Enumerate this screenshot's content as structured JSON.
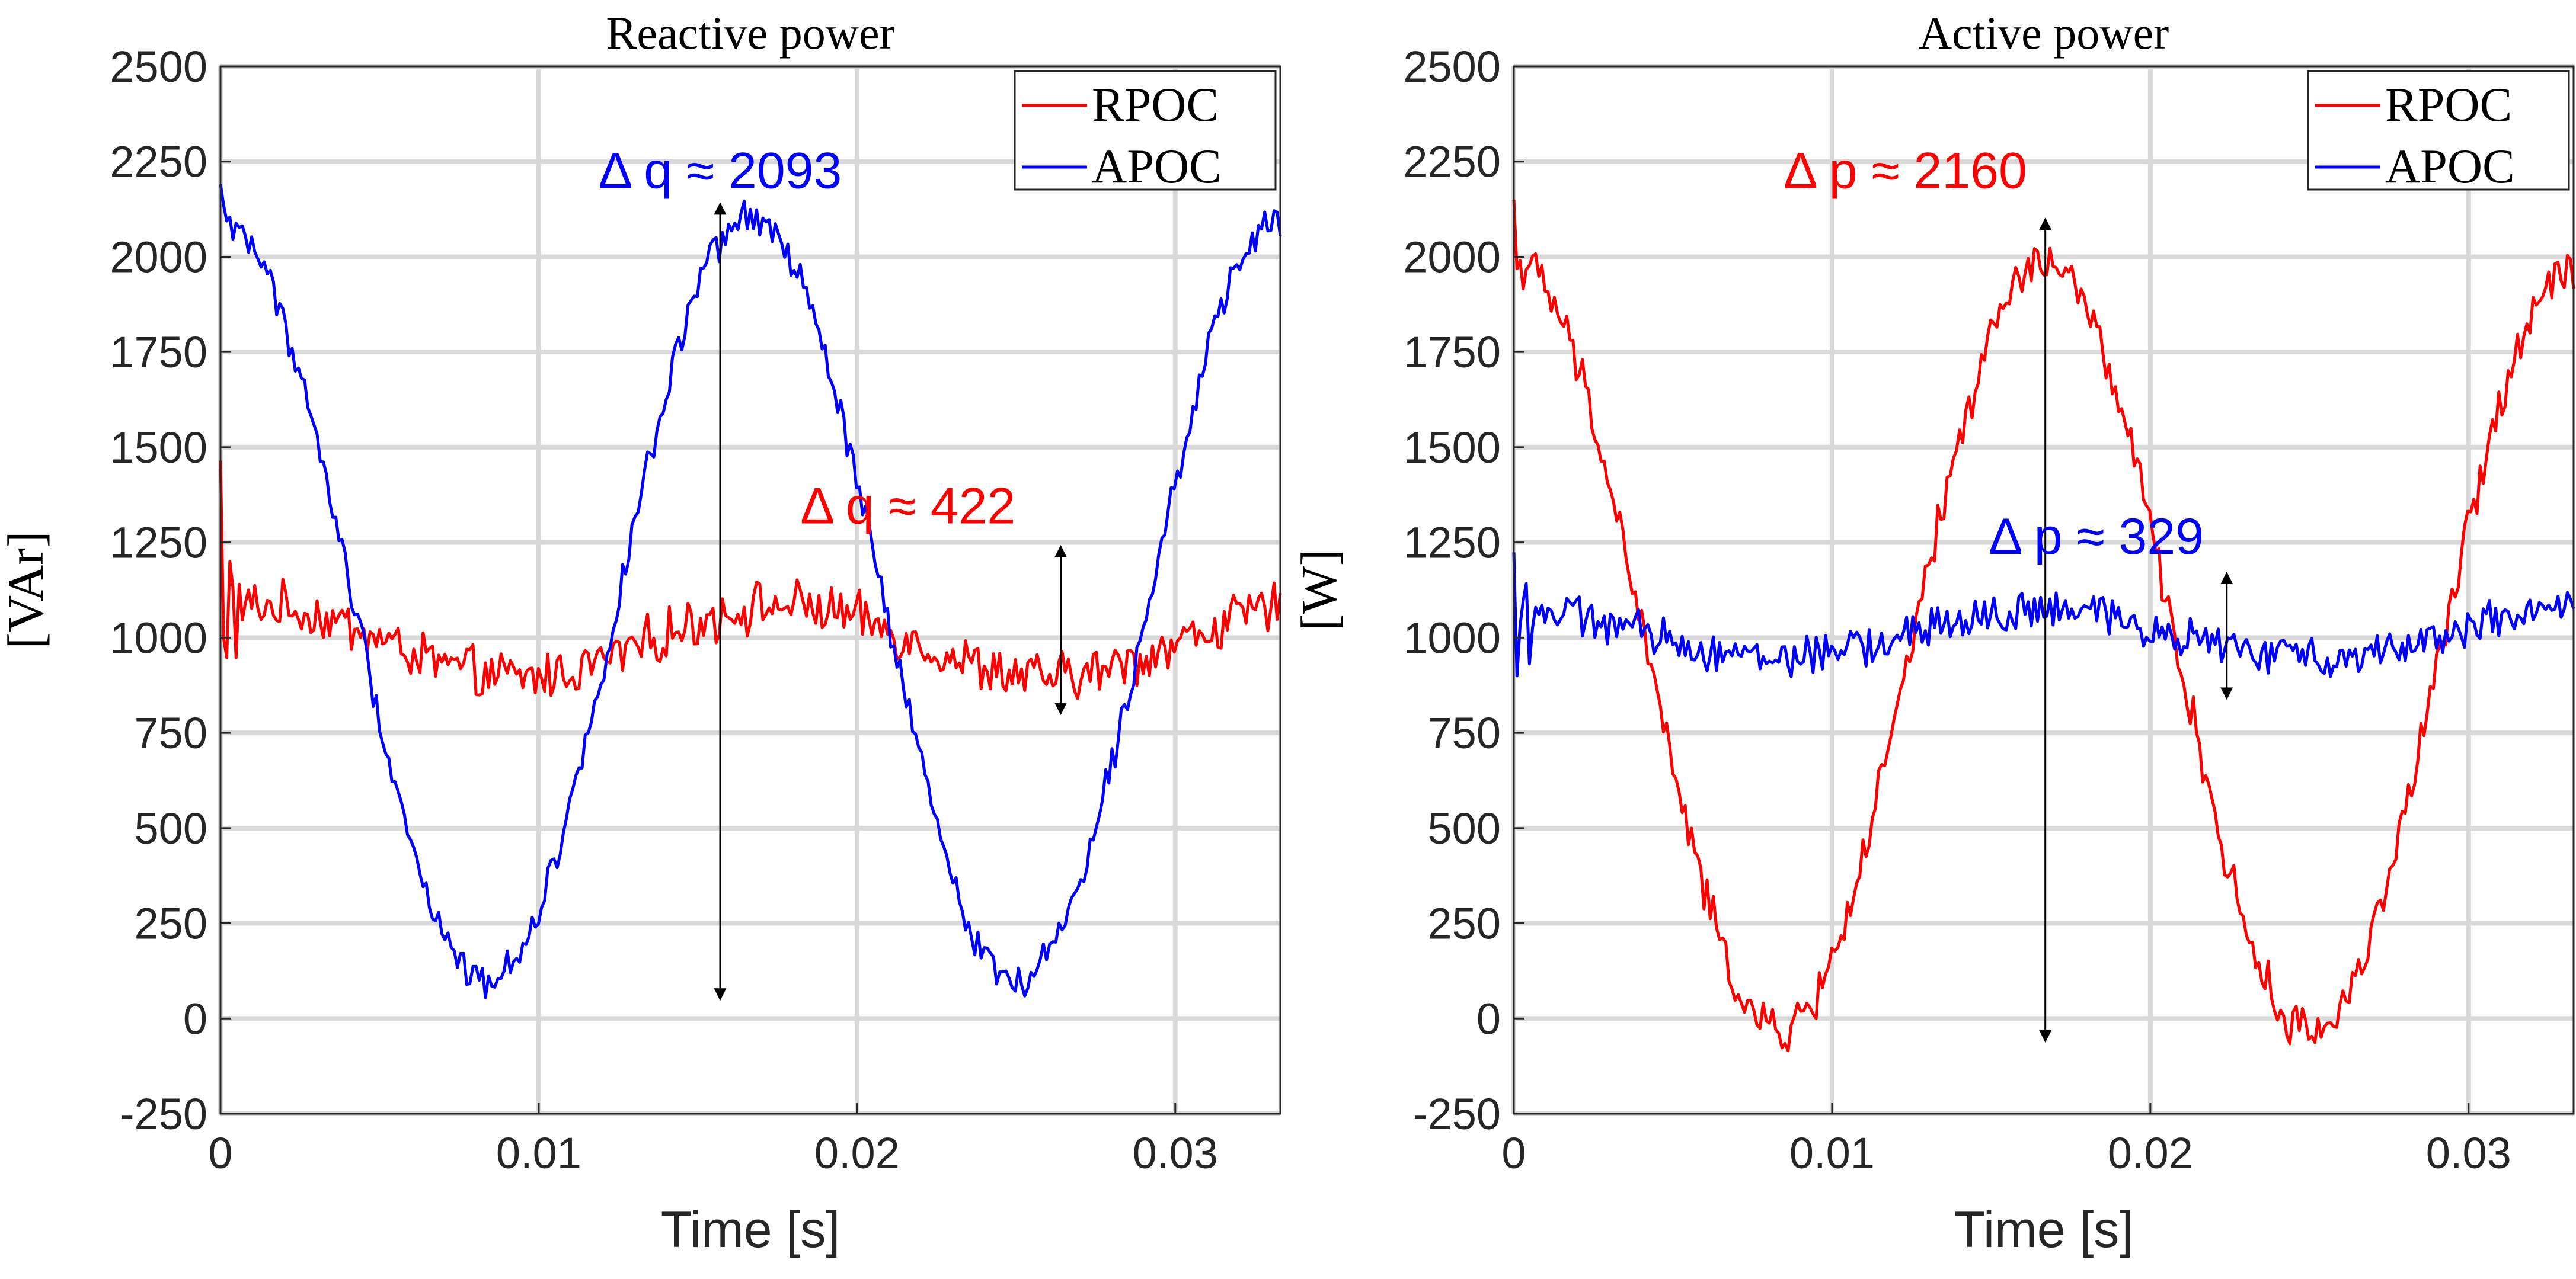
{
  "colors": {
    "rpoc": "#ff0000",
    "apoc": "#0000ff",
    "grid": "#d9d9d9",
    "axis": "#262626",
    "arrow": "#000000"
  },
  "chart_data": [
    {
      "type": "line",
      "title": "Reactive power",
      "xlabel": "Time [s]",
      "ylabel": "[VAr]",
      "xlim": [
        0,
        0.0333
      ],
      "ylim": [
        -250,
        2500
      ],
      "xticks": [
        0,
        0.01,
        0.02,
        0.03
      ],
      "xtick_labels": [
        "0",
        "0.01",
        "0.02",
        "0.03"
      ],
      "yticks": [
        -250,
        0,
        250,
        500,
        750,
        1000,
        1250,
        1500,
        1750,
        2000,
        2250,
        2500
      ],
      "ytick_labels": [
        "-250",
        "0",
        "250",
        "500",
        "750",
        "1000",
        "1250",
        "1500",
        "1750",
        "2000",
        "2250",
        "2500"
      ],
      "grid": true,
      "legend": {
        "position": "top-right",
        "entries": [
          "RPOC",
          "APOC"
        ]
      },
      "series": [
        {
          "name": "RPOC",
          "color": "#ff0000",
          "kind": "flat",
          "mean": 990,
          "amplitude": 95,
          "phase": 1.2,
          "noise": 55,
          "x_end": 0.0333,
          "start_value": 1370
        },
        {
          "name": "APOC",
          "color": "#0000ff",
          "kind": "sine",
          "mean": 1100,
          "amplitude": 1000,
          "phase": 1.5708,
          "noise": 38,
          "x_end": 0.0333,
          "start_value": 2190
        }
      ],
      "annotations": [
        {
          "text": "Δ q ≈ 2093",
          "color": "#0000ff",
          "x": 0.0157,
          "y": 2180
        },
        {
          "text": "Δ q ≈ 422",
          "color": "#ff0000",
          "x": 0.0216,
          "y": 1300
        }
      ],
      "arrows": [
        {
          "x": 0.0157,
          "y1": 2140,
          "y2": 50
        },
        {
          "x": 0.0264,
          "y1": 1240,
          "y2": 800
        }
      ]
    },
    {
      "type": "line",
      "title": "Active power",
      "xlabel": "Time [s]",
      "ylabel": "[W]",
      "xlim": [
        0,
        0.0333
      ],
      "ylim": [
        -250,
        2500
      ],
      "xticks": [
        0,
        0.01,
        0.02,
        0.03
      ],
      "xtick_labels": [
        "0",
        "0.01",
        "0.02",
        "0.03"
      ],
      "yticks": [
        -250,
        0,
        250,
        500,
        750,
        1000,
        1250,
        1500,
        1750,
        2000,
        2250,
        2500
      ],
      "ytick_labels": [
        "-250",
        "0",
        "250",
        "500",
        "750",
        "1000",
        "1250",
        "1500",
        "1750",
        "2000",
        "2250",
        "2500"
      ],
      "grid": true,
      "legend": {
        "position": "top-right",
        "entries": [
          "RPOC",
          "APOC"
        ]
      },
      "series": [
        {
          "name": "RPOC",
          "color": "#ff0000",
          "kind": "sine",
          "mean": 975,
          "amplitude": 1010,
          "phase": 1.5708,
          "noise": 50,
          "x_end": 0.0333,
          "start_value": 2150
        },
        {
          "name": "APOC",
          "color": "#0000ff",
          "kind": "flat",
          "mean": 1010,
          "amplitude": 60,
          "phase": 1.5708,
          "noise": 45,
          "x_end": 0.0333,
          "start_value": 1250
        }
      ],
      "annotations": [
        {
          "text": "Δ p ≈ 2160",
          "color": "#ff0000",
          "x": 0.0123,
          "y": 2180
        },
        {
          "text": "Δ p ≈ 329",
          "color": "#0000ff",
          "x": 0.0183,
          "y": 1220
        }
      ],
      "arrows": [
        {
          "x": 0.0167,
          "y1": 2100,
          "y2": -60
        },
        {
          "x": 0.0224,
          "y1": 1170,
          "y2": 840
        }
      ]
    }
  ]
}
